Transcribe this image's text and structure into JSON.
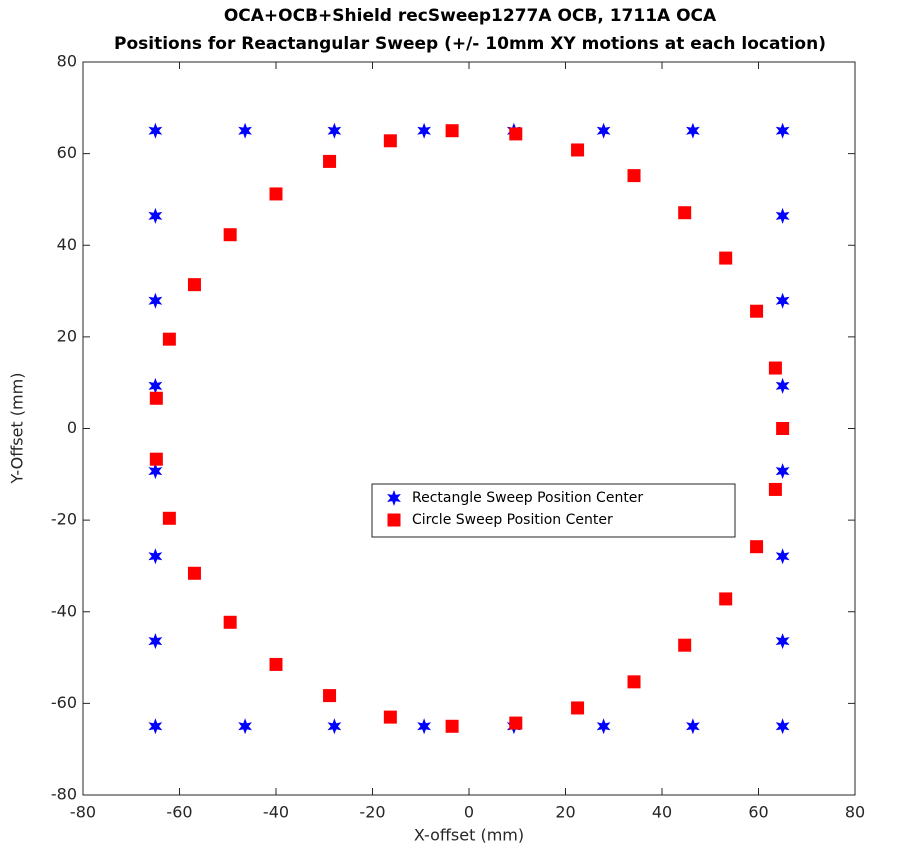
{
  "chart_data": {
    "type": "scatter",
    "title": "OCA+OCB+Shield recSweep1277A OCB, 1711A OCA",
    "subtitle": "Positions for Reactangular Sweep (+/- 10mm XY motions at each location)",
    "x_label": "X-offset (mm)",
    "y_label": "Y-Offset (mm)",
    "xlim": [
      -80,
      80
    ],
    "ylim": [
      -80,
      80
    ],
    "xticks": [
      -80,
      -60,
      -40,
      -20,
      0,
      20,
      40,
      60,
      80
    ],
    "yticks": [
      -80,
      -60,
      -40,
      -20,
      0,
      20,
      40,
      60,
      80
    ],
    "legend": "center",
    "series": [
      {
        "name": "Rectangle Sweep Position Center",
        "color": "#0000ff",
        "marker": "star",
        "x": [
          -65,
          -46.4,
          -27.9,
          -9.3,
          9.3,
          27.9,
          46.4,
          65,
          65,
          65,
          65,
          65,
          65,
          65,
          65,
          46.4,
          27.9,
          9.3,
          -9.3,
          -27.9,
          -46.4,
          -65,
          -65,
          -65,
          -65,
          -65,
          -65,
          -65
        ],
        "values": [
          65,
          65,
          65,
          65,
          65,
          65,
          65,
          65,
          46.4,
          27.9,
          9.3,
          -9.3,
          -27.9,
          -46.4,
          -65,
          -65,
          -65,
          -65,
          -65,
          -65,
          -65,
          -65,
          -46.4,
          -27.9,
          -9.3,
          9.3,
          27.9,
          46.4
        ]
      },
      {
        "name": "Circle Sweep Position Center",
        "color": "#ff0000",
        "marker": "square",
        "x": [
          -3.5,
          9.7,
          22.5,
          34.2,
          44.7,
          53.2,
          59.6,
          63.5,
          65,
          63.5,
          59.6,
          53.2,
          44.7,
          34.2,
          22.5,
          9.7,
          -3.5,
          -16.3,
          -28.9,
          -40,
          -49.5,
          -56.9,
          -62.1,
          -64.8,
          -64.8,
          -62.1,
          -56.9,
          -49.5,
          -40,
          -28.9,
          -16.3
        ],
        "values": [
          65,
          64.3,
          60.8,
          55.2,
          47.1,
          37.2,
          25.6,
          13.2,
          0,
          -13.3,
          -25.8,
          -37.2,
          -47.3,
          -55.3,
          -61,
          -64.3,
          -65,
          -63,
          -58.3,
          -51.5,
          -42.3,
          -31.6,
          -19.6,
          -6.7,
          6.6,
          19.5,
          31.4,
          42.3,
          51.2,
          58.3,
          62.8
        ]
      }
    ]
  }
}
